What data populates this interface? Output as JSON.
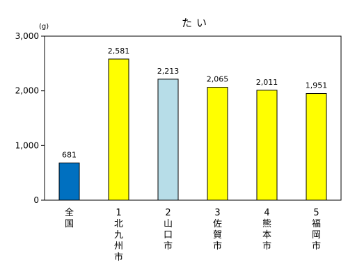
{
  "chart_data": {
    "type": "bar",
    "title": "たい",
    "ylabel": "(g)",
    "xlabel": "",
    "ylim": [
      0,
      3000
    ],
    "yticks": [
      0,
      1000,
      2000,
      3000
    ],
    "ytick_labels": [
      "0",
      "1,000",
      "2,000",
      "3,000"
    ],
    "grid": false,
    "categories": [
      [
        "全",
        "国"
      ],
      [
        "1",
        "北",
        "九",
        "州",
        "市"
      ],
      [
        "2",
        "山",
        "口",
        "市"
      ],
      [
        "3",
        "佐",
        "賀",
        "市"
      ],
      [
        "4",
        "熊",
        "本",
        "市"
      ],
      [
        "5",
        "福",
        "岡",
        "市"
      ]
    ],
    "values": [
      681,
      2581,
      2213,
      2065,
      2011,
      1951
    ],
    "value_labels": [
      "681",
      "2,581",
      "2,213",
      "2,065",
      "2,011",
      "1,951"
    ],
    "bar_colors": [
      "#0070C0",
      "#FFFF00",
      "#B7DDE8",
      "#FFFF00",
      "#FFFF00",
      "#FFFF00"
    ]
  }
}
